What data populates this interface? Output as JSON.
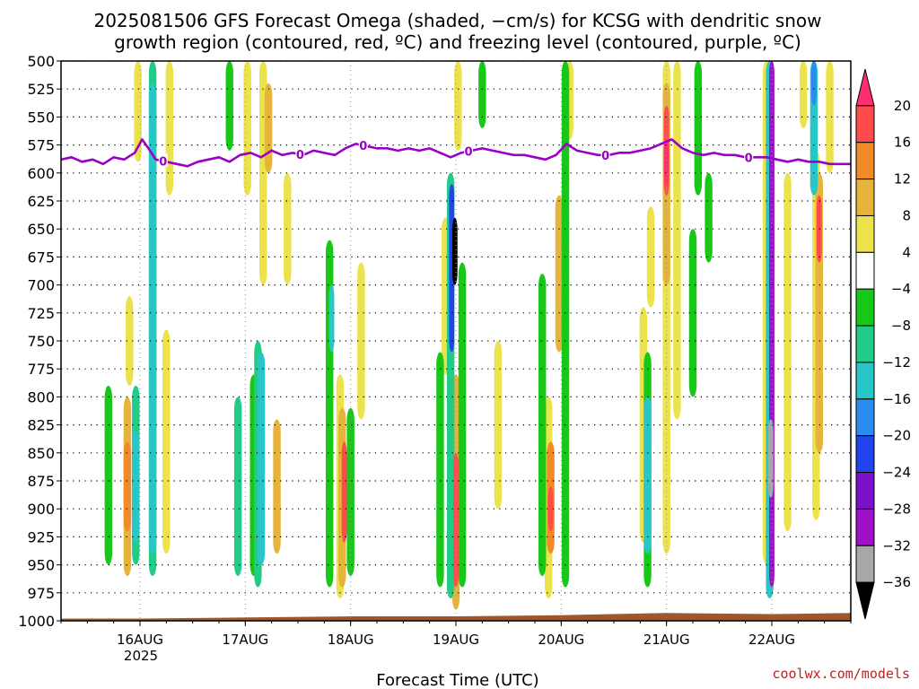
{
  "chart_data": {
    "type": "heatmap",
    "title_lines": [
      "2025081506 GFS Forecast Omega (shaded, −cm/s) for KCSG with dendritic snow",
      "growth region (contoured, red, ºC) and freezing level (contoured, purple, ºC)"
    ],
    "xlabel": "Forecast Time (UTC)",
    "ylabel": "",
    "credit": "coolwx.com/models",
    "y_axis": {
      "ticks": [
        500,
        525,
        550,
        575,
        600,
        625,
        650,
        675,
        700,
        725,
        750,
        775,
        800,
        825,
        850,
        875,
        900,
        925,
        950,
        975,
        1000
      ],
      "tick_labels": [
        "500",
        "525",
        "550",
        "575",
        "600",
        "625",
        "650",
        "675",
        "700",
        "725",
        "750",
        "775",
        "800",
        "825",
        "850",
        "875",
        "900",
        "925",
        "950",
        "975",
        "1000"
      ],
      "range": [
        500,
        1000
      ],
      "inverted": true
    },
    "x_axis": {
      "range": [
        0.25,
        7.75
      ],
      "ticks": [
        1,
        2,
        3,
        4,
        5,
        6,
        7
      ],
      "tick_labels": [
        "16AUG",
        "17AUG",
        "18AUG",
        "19AUG",
        "20AUG",
        "21AUG",
        "22AUG"
      ],
      "sub_label": "2025"
    },
    "grid": true,
    "colorbar": {
      "boundaries": [
        20,
        16,
        12,
        8,
        4,
        -4,
        -8,
        -12,
        -16,
        -20,
        -24,
        -28,
        -32,
        -36
      ],
      "labels": [
        "20",
        "16",
        "12",
        "8",
        "4",
        "−4",
        "−8",
        "−12",
        "−16",
        "−20",
        "−24",
        "−28",
        "−32",
        "−36"
      ],
      "colors": [
        "#ff2f6f",
        "#ff4b4b",
        "#f28a2a",
        "#e6b43a",
        "#ece24b",
        "#ffffff",
        "#18c818",
        "#22cc88",
        "#28c6c6",
        "#2a8cf0",
        "#2244ee",
        "#7a10c8",
        "#a010c8",
        "#a8a8a8",
        "#000000"
      ]
    },
    "omega_blobs": [
      {
        "x": 0.98,
        "p_top": 500,
        "p_bot": 590,
        "value": 6
      },
      {
        "x": 1.12,
        "p_top": 500,
        "p_bot": 960,
        "value": -10
      },
      {
        "x": 1.12,
        "p_top": 520,
        "p_bot": 940,
        "value": -14
      },
      {
        "x": 0.7,
        "p_top": 790,
        "p_bot": 950,
        "value": -8
      },
      {
        "x": 0.88,
        "p_top": 800,
        "p_bot": 960,
        "value": 8
      },
      {
        "x": 0.88,
        "p_top": 840,
        "p_bot": 920,
        "value": 12
      },
      {
        "x": 0.96,
        "p_top": 790,
        "p_bot": 950,
        "value": -10
      },
      {
        "x": 0.96,
        "p_top": 830,
        "p_bot": 930,
        "value": -14
      },
      {
        "x": 0.9,
        "p_top": 710,
        "p_bot": 790,
        "value": 6
      },
      {
        "x": 1.25,
        "p_top": 740,
        "p_bot": 940,
        "value": 6
      },
      {
        "x": 1.28,
        "p_top": 500,
        "p_bot": 620,
        "value": 6
      },
      {
        "x": 1.85,
        "p_top": 500,
        "p_bot": 580,
        "value": -8
      },
      {
        "x": 1.93,
        "p_top": 800,
        "p_bot": 960,
        "value": -10
      },
      {
        "x": 2.02,
        "p_top": 500,
        "p_bot": 620,
        "value": 6
      },
      {
        "x": 2.08,
        "p_top": 780,
        "p_bot": 960,
        "value": -8
      },
      {
        "x": 2.12,
        "p_top": 750,
        "p_bot": 970,
        "value": -10
      },
      {
        "x": 2.15,
        "p_top": 760,
        "p_bot": 950,
        "value": -14
      },
      {
        "x": 2.17,
        "p_top": 500,
        "p_bot": 700,
        "value": 6
      },
      {
        "x": 2.22,
        "p_top": 520,
        "p_bot": 600,
        "value": 10
      },
      {
        "x": 2.3,
        "p_top": 820,
        "p_bot": 940,
        "value": 8
      },
      {
        "x": 2.4,
        "p_top": 600,
        "p_bot": 700,
        "value": 5
      },
      {
        "x": 2.8,
        "p_top": 660,
        "p_bot": 970,
        "value": -8
      },
      {
        "x": 2.82,
        "p_top": 700,
        "p_bot": 760,
        "value": -16
      },
      {
        "x": 2.9,
        "p_top": 780,
        "p_bot": 980,
        "value": 6
      },
      {
        "x": 2.92,
        "p_top": 810,
        "p_bot": 970,
        "value": 10
      },
      {
        "x": 2.94,
        "p_top": 840,
        "p_bot": 930,
        "value": 18
      },
      {
        "x": 3.0,
        "p_top": 810,
        "p_bot": 960,
        "value": -8
      },
      {
        "x": 3.1,
        "p_top": 680,
        "p_bot": 820,
        "value": 5
      },
      {
        "x": 3.85,
        "p_top": 760,
        "p_bot": 970,
        "value": -8
      },
      {
        "x": 3.9,
        "p_top": 640,
        "p_bot": 780,
        "value": 6
      },
      {
        "x": 3.95,
        "p_top": 600,
        "p_bot": 980,
        "value": -10
      },
      {
        "x": 3.96,
        "p_top": 610,
        "p_bot": 760,
        "value": -22
      },
      {
        "x": 3.99,
        "p_top": 640,
        "p_bot": 700,
        "value": -40
      },
      {
        "x": 4.0,
        "p_top": 780,
        "p_bot": 990,
        "value": 8
      },
      {
        "x": 4.0,
        "p_top": 850,
        "p_bot": 970,
        "value": 18
      },
      {
        "x": 4.06,
        "p_top": 680,
        "p_bot": 970,
        "value": -8
      },
      {
        "x": 4.02,
        "p_top": 500,
        "p_bot": 580,
        "value": 6
      },
      {
        "x": 4.25,
        "p_top": 500,
        "p_bot": 560,
        "value": -8
      },
      {
        "x": 4.4,
        "p_top": 750,
        "p_bot": 900,
        "value": 5
      },
      {
        "x": 4.82,
        "p_top": 690,
        "p_bot": 960,
        "value": -8
      },
      {
        "x": 4.88,
        "p_top": 800,
        "p_bot": 980,
        "value": 6
      },
      {
        "x": 4.9,
        "p_top": 840,
        "p_bot": 940,
        "value": 12
      },
      {
        "x": 4.9,
        "p_top": 880,
        "p_bot": 920,
        "value": 18
      },
      {
        "x": 4.98,
        "p_top": 620,
        "p_bot": 760,
        "value": 8
      },
      {
        "x": 5.04,
        "p_top": 500,
        "p_bot": 970,
        "value": -8
      },
      {
        "x": 5.08,
        "p_top": 500,
        "p_bot": 570,
        "value": 6
      },
      {
        "x": 5.78,
        "p_top": 720,
        "p_bot": 930,
        "value": 6
      },
      {
        "x": 5.82,
        "p_top": 760,
        "p_bot": 970,
        "value": -8
      },
      {
        "x": 5.82,
        "p_top": 800,
        "p_bot": 940,
        "value": -14
      },
      {
        "x": 5.85,
        "p_top": 630,
        "p_bot": 720,
        "value": 6
      },
      {
        "x": 6.0,
        "p_top": 500,
        "p_bot": 940,
        "value": 6
      },
      {
        "x": 6.0,
        "p_top": 520,
        "p_bot": 700,
        "value": 10
      },
      {
        "x": 6.0,
        "p_top": 540,
        "p_bot": 620,
        "value": 16
      },
      {
        "x": 6.0,
        "p_top": 570,
        "p_bot": 610,
        "value": 22
      },
      {
        "x": 6.1,
        "p_top": 500,
        "p_bot": 820,
        "value": 6
      },
      {
        "x": 6.3,
        "p_top": 500,
        "p_bot": 620,
        "value": -8
      },
      {
        "x": 6.25,
        "p_top": 650,
        "p_bot": 800,
        "value": -8
      },
      {
        "x": 6.4,
        "p_top": 600,
        "p_bot": 680,
        "value": -8
      },
      {
        "x": 6.95,
        "p_top": 500,
        "p_bot": 950,
        "value": 6
      },
      {
        "x": 6.98,
        "p_top": 500,
        "p_bot": 980,
        "value": -14
      },
      {
        "x": 7.0,
        "p_top": 500,
        "p_bot": 970,
        "value": -30
      },
      {
        "x": 6.99,
        "p_top": 820,
        "p_bot": 890,
        "value": -34
      },
      {
        "x": 7.15,
        "p_top": 600,
        "p_bot": 920,
        "value": 6
      },
      {
        "x": 7.3,
        "p_top": 500,
        "p_bot": 560,
        "value": 6
      },
      {
        "x": 7.4,
        "p_top": 500,
        "p_bot": 620,
        "value": -14
      },
      {
        "x": 7.4,
        "p_top": 500,
        "p_bot": 540,
        "value": -18
      },
      {
        "x": 7.42,
        "p_top": 580,
        "p_bot": 910,
        "value": 6
      },
      {
        "x": 7.45,
        "p_top": 600,
        "p_bot": 850,
        "value": 10
      },
      {
        "x": 7.45,
        "p_top": 620,
        "p_bot": 680,
        "value": 18
      },
      {
        "x": 7.55,
        "p_top": 500,
        "p_bot": 600,
        "value": 6
      }
    ],
    "freezing_level": {
      "label": "0",
      "label_x": [
        1.22,
        2.52,
        3.12,
        4.12,
        5.42,
        6.78
      ],
      "x": [
        0.25,
        0.35,
        0.45,
        0.55,
        0.65,
        0.75,
        0.85,
        0.95,
        1.02,
        1.08,
        1.15,
        1.25,
        1.35,
        1.45,
        1.55,
        1.65,
        1.75,
        1.85,
        1.95,
        2.05,
        2.15,
        2.25,
        2.35,
        2.45,
        2.55,
        2.65,
        2.75,
        2.85,
        2.95,
        3.05,
        3.15,
        3.25,
        3.35,
        3.45,
        3.55,
        3.65,
        3.75,
        3.85,
        3.95,
        4.05,
        4.15,
        4.25,
        4.35,
        4.45,
        4.55,
        4.65,
        4.75,
        4.85,
        4.95,
        5.05,
        5.15,
        5.25,
        5.35,
        5.45,
        5.55,
        5.65,
        5.75,
        5.85,
        5.95,
        6.05,
        6.15,
        6.25,
        6.35,
        6.45,
        6.55,
        6.65,
        6.75,
        6.85,
        6.95,
        7.05,
        7.15,
        7.25,
        7.35,
        7.45,
        7.55,
        7.65,
        7.75
      ],
      "y": [
        588,
        586,
        590,
        588,
        592,
        586,
        588,
        582,
        570,
        578,
        588,
        590,
        592,
        594,
        590,
        588,
        586,
        590,
        584,
        582,
        586,
        580,
        584,
        582,
        584,
        580,
        582,
        584,
        578,
        574,
        576,
        578,
        578,
        580,
        578,
        580,
        578,
        582,
        586,
        582,
        580,
        578,
        580,
        582,
        584,
        584,
        586,
        588,
        584,
        574,
        580,
        582,
        584,
        584,
        582,
        582,
        580,
        578,
        574,
        570,
        578,
        582,
        584,
        582,
        584,
        584,
        586,
        586,
        586,
        588,
        590,
        588,
        590,
        590,
        592,
        592,
        592
      ]
    },
    "surface_line": {
      "x": [
        0.25,
        1.0,
        2.0,
        3.0,
        4.0,
        5.0,
        6.0,
        7.0,
        7.75
      ],
      "p": [
        998,
        998,
        997,
        996,
        996,
        995,
        993,
        994,
        993
      ]
    }
  }
}
